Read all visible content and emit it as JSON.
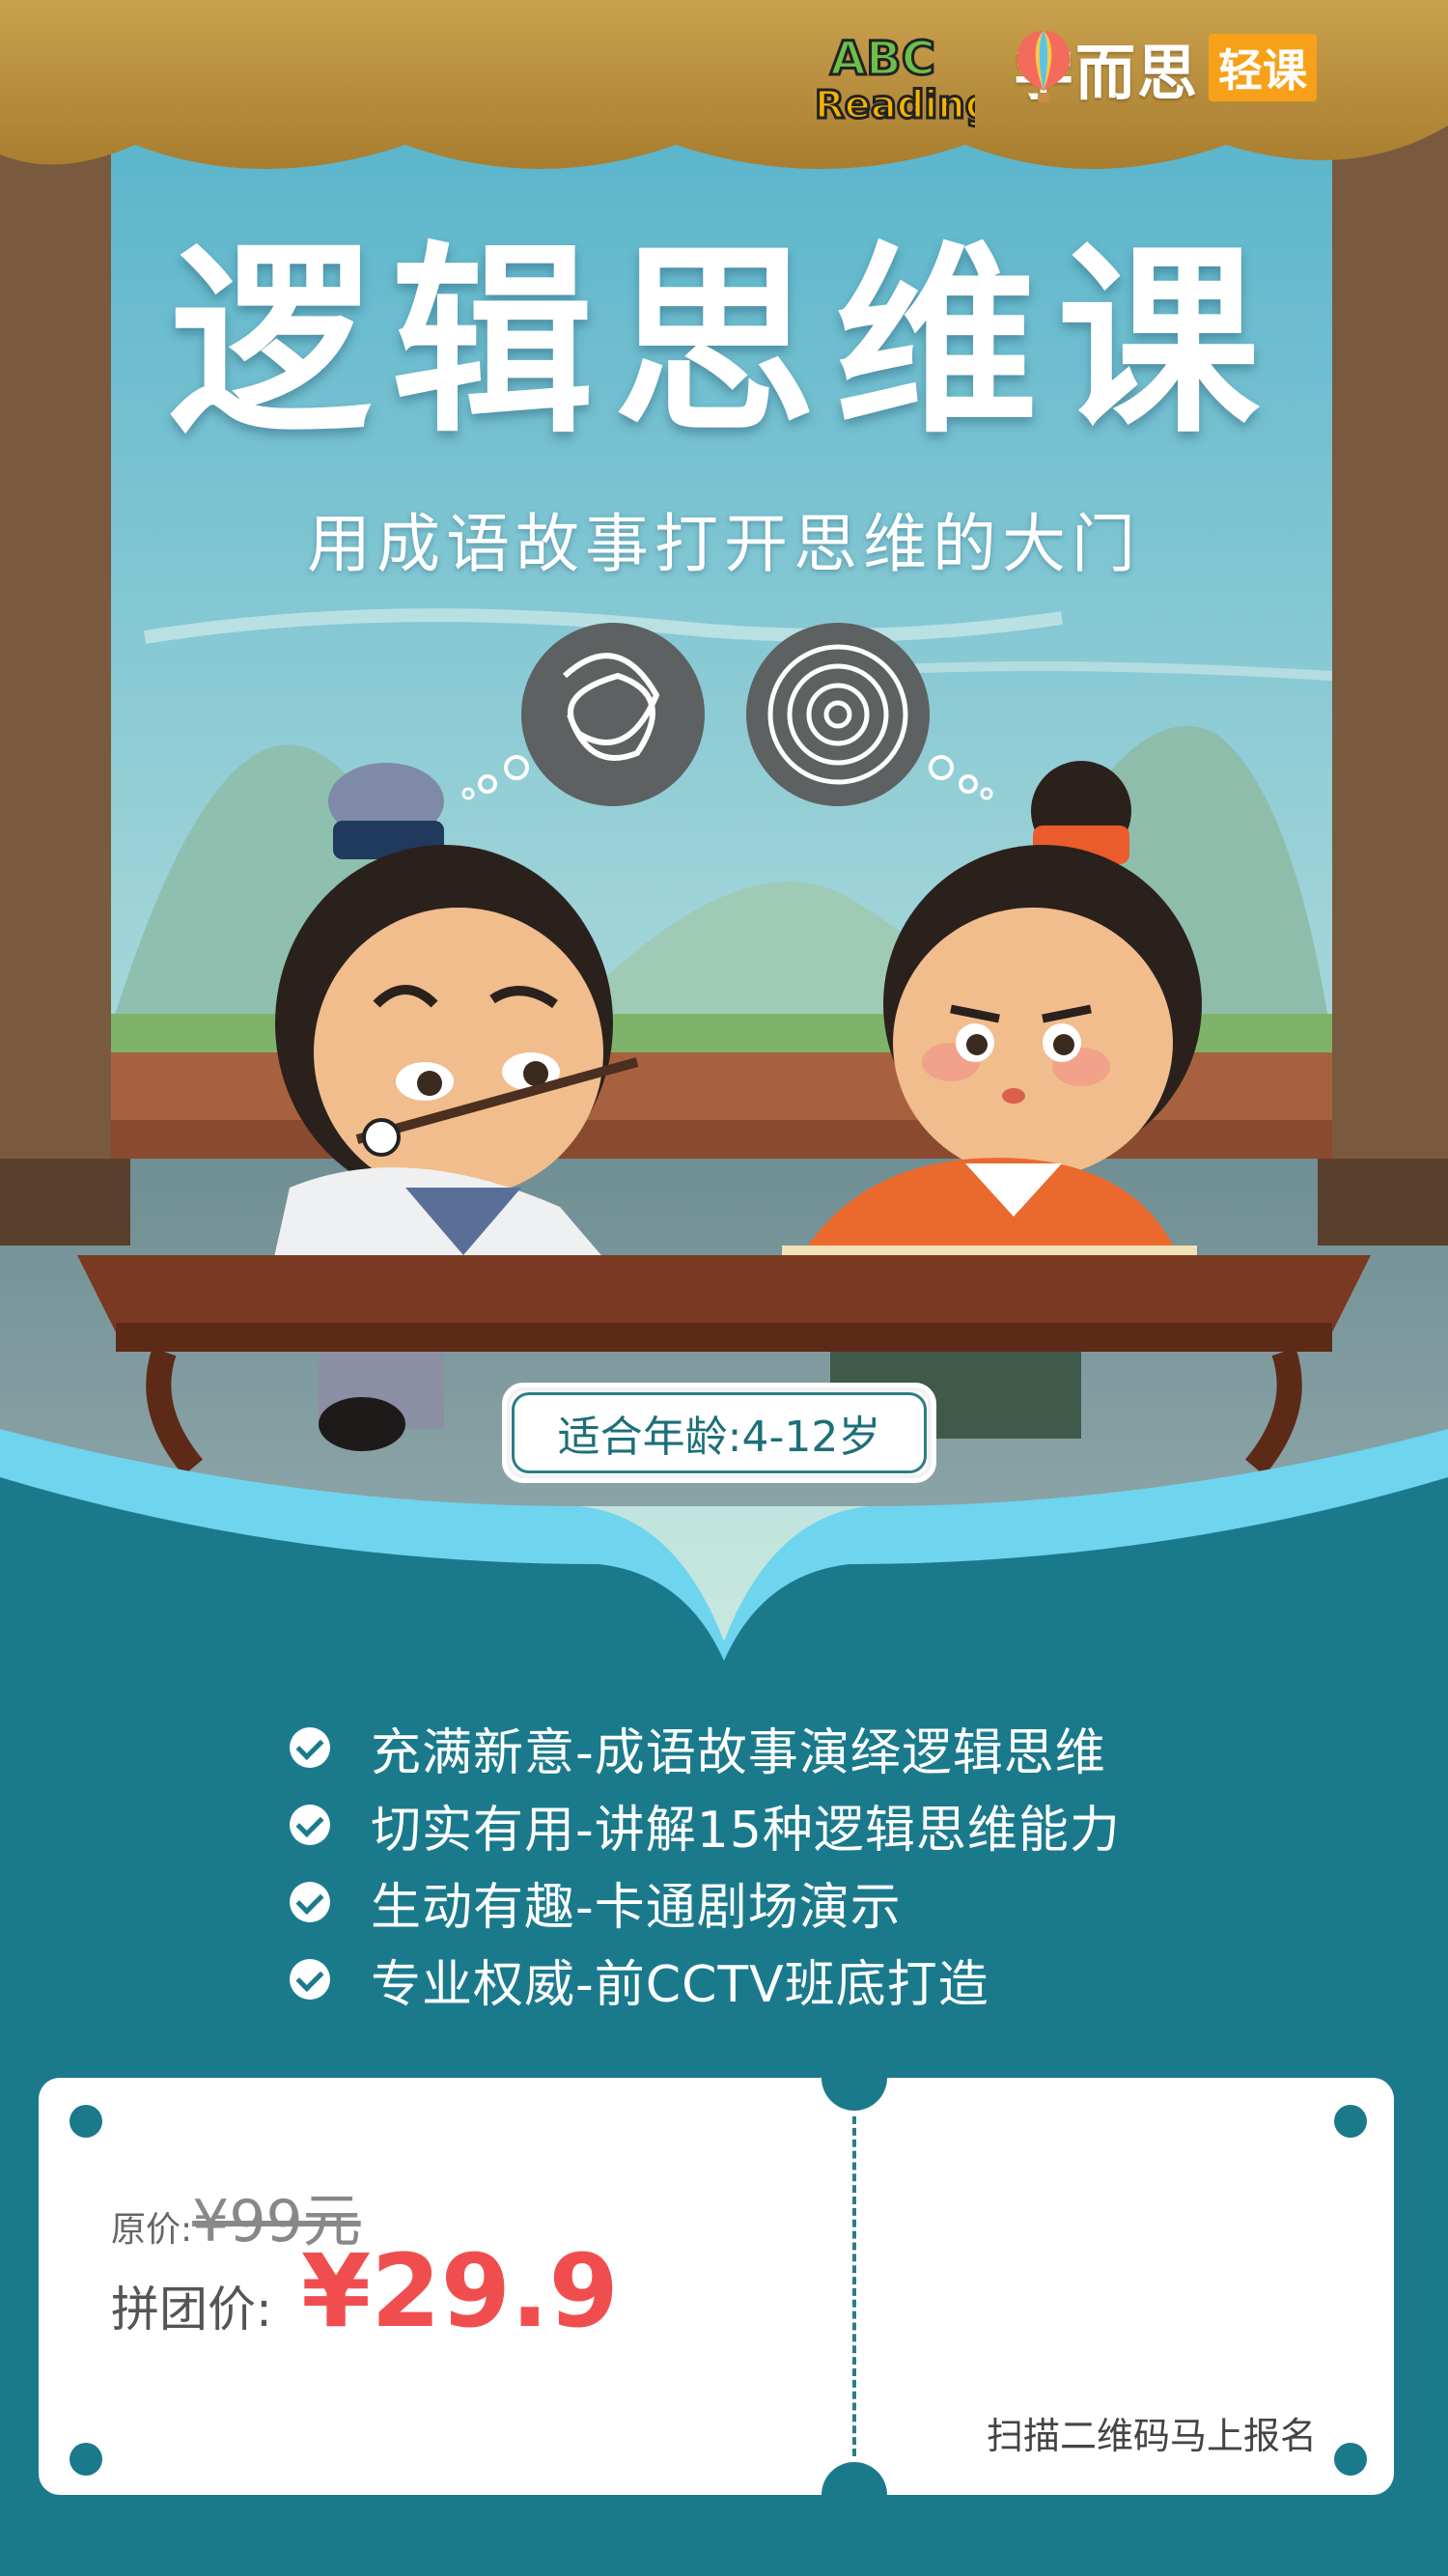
{
  "brand": {
    "abc_logo_top": "ABC",
    "abc_logo_bottom": "Reading",
    "xes_name": "学而思",
    "xes_tag": "轻课"
  },
  "hero": {
    "title": "逻辑思维课",
    "subtitle": "用成语故事打开思维的大门",
    "age_badge": "适合年龄:4-12岁"
  },
  "features": [
    "充满新意-成语故事演绎逻辑思维",
    "切实有用-讲解15种逻辑思维能力",
    "生动有趣-卡通剧场演示",
    "专业权威-前CCTV班底打造"
  ],
  "ticket": {
    "original_label": "原价:",
    "original_price": "¥99元",
    "group_label": "拼团价:",
    "group_price": "¥29.9",
    "scan_text": "扫描二维码马上报名"
  },
  "colors": {
    "teal": "#1a7a8c",
    "sky": "#5cb5cc",
    "price_red": "#f04e4e",
    "badge_orange": "#f7a11a"
  }
}
